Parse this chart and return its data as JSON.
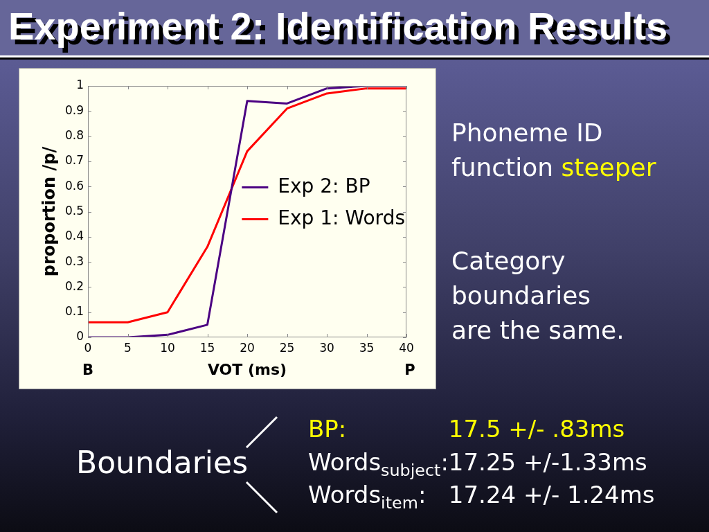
{
  "chart_data": {
    "type": "line",
    "title": "Experiment 2: Identification Results",
    "xlabel": "VOT (ms)",
    "ylabel": "proportion /p/",
    "x": [
      0,
      5,
      10,
      15,
      20,
      25,
      30,
      35,
      40
    ],
    "series": [
      {
        "name": "Exp 2: BP",
        "color": "#4b0082",
        "values": [
          0,
          0,
          0.01,
          0.05,
          0.94,
          0.93,
          0.99,
          1,
          1
        ]
      },
      {
        "name": "Exp 1: Words",
        "color": "#ff0000",
        "values": [
          0.06,
          0.06,
          0.1,
          0.36,
          0.74,
          0.91,
          0.97,
          0.99,
          0.99
        ]
      }
    ],
    "xlim": [
      0,
      40
    ],
    "xticks": [
      0,
      5,
      10,
      15,
      20,
      25,
      30,
      35,
      40
    ],
    "ylim": [
      0,
      1
    ],
    "yticks": [
      0,
      0.1,
      0.2,
      0.3,
      0.4,
      0.5,
      0.6,
      0.7,
      0.8,
      0.9,
      1
    ],
    "legend": "right",
    "annotations": [
      "B",
      "P",
      "Phoneme ID",
      "function",
      "steeper",
      "Category boundaries are the same.",
      "Boundaries",
      "BP:",
      "17.5 +/- .83ms",
      "Words$_{subject}$:",
      "17.25 +/-1.33ms",
      "Words$_{item}$:",
      "17.24 +/- 1.24ms"
    ]
  }
}
